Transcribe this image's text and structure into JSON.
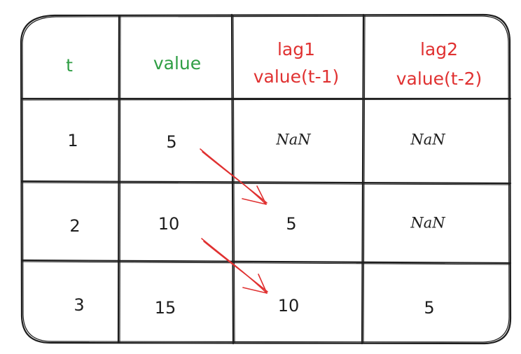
{
  "colors": {
    "header_green": "#2f9e44",
    "header_red": "#e03131",
    "arrow_red": "#e03131",
    "ink": "#1e1e1e"
  },
  "table": {
    "headers": {
      "t": "t",
      "value": "value",
      "lag1_line1": "lag1",
      "lag1_line2": "value(t-1)",
      "lag2_line1": "lag2",
      "lag2_line2": "value(t-2)"
    },
    "rows": [
      {
        "t": "1",
        "value": "5",
        "lag1": "NaN",
        "lag2": "NaN"
      },
      {
        "t": "2",
        "value": "10",
        "lag1": "5",
        "lag2": "NaN"
      },
      {
        "t": "3",
        "value": "15",
        "lag1": "10",
        "lag2": "5"
      }
    ]
  }
}
